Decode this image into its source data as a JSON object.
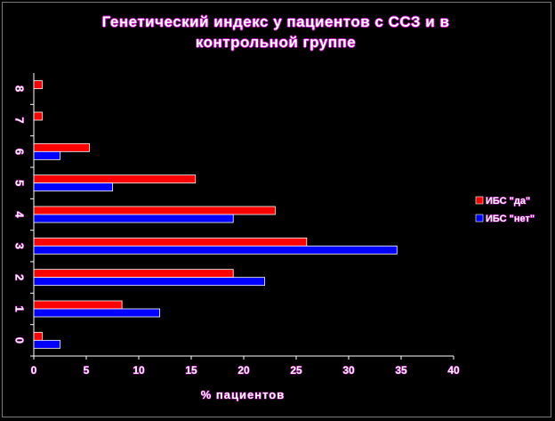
{
  "chart_data": {
    "type": "bar",
    "orientation": "horizontal",
    "title_lines": [
      "Генетический индекс у пациентов с ССЗ и в",
      "контрольной группе"
    ],
    "xlabel": "% пациентов",
    "ylabel": "",
    "categories": [
      "0",
      "1",
      "2",
      "3",
      "4",
      "5",
      "6",
      "7",
      "8"
    ],
    "xlim": [
      0,
      40
    ],
    "xticks": [
      0,
      5,
      10,
      15,
      20,
      25,
      30,
      35,
      40
    ],
    "grid": false,
    "legend_position": "right",
    "series": [
      {
        "name": "ИБС \"да\"",
        "color": "#ff0000",
        "values": [
          0.8,
          8.4,
          19,
          26,
          23,
          15.4,
          5.3,
          0.8,
          0.8
        ]
      },
      {
        "name": "ИБС \"нет\"",
        "color": "#0000ff",
        "values": [
          2.5,
          12,
          22,
          34.6,
          19,
          7.5,
          2.5,
          0,
          0
        ]
      }
    ]
  }
}
